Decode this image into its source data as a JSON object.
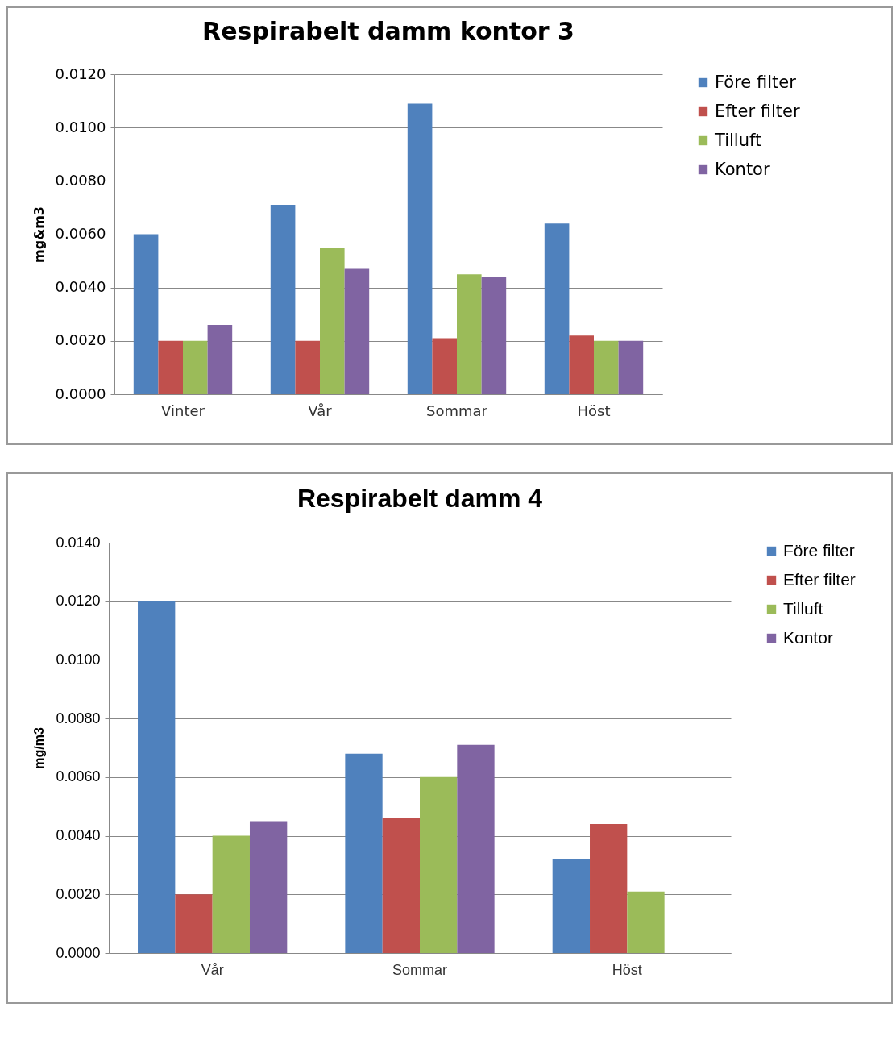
{
  "chart_data": [
    {
      "type": "bar",
      "title": "Respirabelt damm kontor 3",
      "ylabel": "mg&m3",
      "categories": [
        "Vinter",
        "Vår",
        "Sommar",
        "Höst"
      ],
      "series": [
        {
          "name": "Före filter",
          "color": "#4f81bd",
          "values": [
            0.006,
            0.0071,
            0.0109,
            0.0064
          ]
        },
        {
          "name": "Efter filter",
          "color": "#c0504d",
          "values": [
            0.002,
            0.002,
            0.0021,
            0.0022
          ]
        },
        {
          "name": "Tilluft",
          "color": "#9bbb59",
          "values": [
            0.002,
            0.0055,
            0.0045,
            0.002
          ]
        },
        {
          "name": "Kontor",
          "color": "#8064a2",
          "values": [
            0.0026,
            0.0047,
            0.0044,
            0.002
          ]
        }
      ],
      "ylim": [
        0,
        0.012
      ],
      "yticks": [
        {
          "value": 0,
          "label": "0.0000"
        },
        {
          "value": 0.002,
          "label": "0.0020"
        },
        {
          "value": 0.004,
          "label": "0.0040"
        },
        {
          "value": 0.006,
          "label": "0.0060"
        },
        {
          "value": 0.008,
          "label": "0.0080"
        },
        {
          "value": 0.01,
          "label": "0.0100"
        },
        {
          "value": 0.012,
          "label": "0.0120"
        }
      ],
      "grid": "y",
      "legend": "right"
    },
    {
      "type": "bar",
      "title": "Respirabelt damm 4",
      "ylabel": "mg/m3",
      "categories": [
        "Vår",
        "Sommar",
        "Höst"
      ],
      "series": [
        {
          "name": "Före filter",
          "color": "#4f81bd",
          "values": [
            0.012,
            0.0068,
            0.0032
          ]
        },
        {
          "name": "Efter filter",
          "color": "#c0504d",
          "values": [
            0.002,
            0.0046,
            0.0044
          ]
        },
        {
          "name": "Tilluft",
          "color": "#9bbb59",
          "values": [
            0.004,
            0.006,
            0.0021
          ]
        },
        {
          "name": "Kontor",
          "color": "#8064a2",
          "values": [
            0.0045,
            0.0071,
            null
          ]
        }
      ],
      "ylim": [
        0,
        0.014
      ],
      "yticks": [
        {
          "value": 0,
          "label": "0.0000"
        },
        {
          "value": 0.002,
          "label": "0.0020"
        },
        {
          "value": 0.004,
          "label": "0.0040"
        },
        {
          "value": 0.006,
          "label": "0.0060"
        },
        {
          "value": 0.008,
          "label": "0.0080"
        },
        {
          "value": 0.01,
          "label": "0.0100"
        },
        {
          "value": 0.012,
          "label": "0.0120"
        },
        {
          "value": 0.014,
          "label": "0.0140"
        }
      ],
      "grid": "y",
      "legend": "right"
    }
  ]
}
